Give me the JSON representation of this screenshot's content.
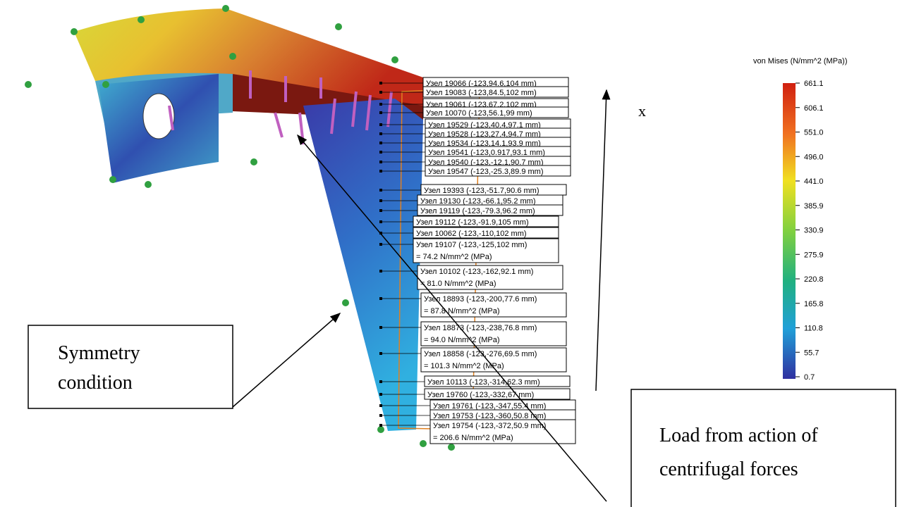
{
  "legend": {
    "title": "von Mises (N/mm^2 (MPa))",
    "labels": [
      "661.1",
      "606.1",
      "551.0",
      "496.0",
      "441.0",
      "385.9",
      "330.9",
      "275.9",
      "220.8",
      "165.8",
      "110.8",
      "55.7",
      "0.7"
    ]
  },
  "axis_label": "x",
  "callouts": {
    "symmetry": [
      "Symmetry",
      "condition"
    ],
    "load": [
      "Load from action of",
      "centrifugal forces"
    ]
  },
  "probes": [
    {
      "node": "Узел 19066 (-123,94.6,104 mm)"
    },
    {
      "node": "Узел 19083 (-123,84.5,102 mm)"
    },
    {
      "node": "Узел 19061 (-123,67.2,102 mm)"
    },
    {
      "node": "Узел 10070 (-123,56.1,99 mm)"
    },
    {
      "node": "Узел 19529 (-123,40.4,97.1 mm)"
    },
    {
      "node": "Узел 19528 (-123,27.4,94.7 mm)"
    },
    {
      "node": "Узел 19534 (-123,14.1,93.9 mm)"
    },
    {
      "node": "Узел 19541 (-123,0.917,93.1 mm)"
    },
    {
      "node": "Узел 19540 (-123,-12.1,90.7 mm)"
    },
    {
      "node": "Узел 19547 (-123,-25.3,89.9 mm)"
    },
    {
      "node": "Узел 19393 (-123,-51.7,90.6 mm)"
    },
    {
      "node": "Узел 19130 (-123,-66.1,95.2 mm)"
    },
    {
      "node": "Узел 19119 (-123,-79.3,96.2 mm)"
    },
    {
      "node": "Узел 19112 (-123,-91.9,105 mm)"
    },
    {
      "node": "Узел 10062 (-123,-110,102 mm)"
    },
    {
      "node": "Узел 19107 (-123,-125,102 mm)",
      "result": "= 74.2    N/mm^2 (MPa)"
    },
    {
      "node": "Узел 10102 (-123,-162,92.1 mm)",
      "result": "= 81.0    N/mm^2 (MPa)"
    },
    {
      "node": "Узел 18893 (-123,-200,77.6 mm)",
      "result": "= 87.8    N/mm^2 (MPa)"
    },
    {
      "node": "Узел 18873 (-123,-238,76.8 mm)",
      "result": "= 94.0    N/mm^2 (MPa)"
    },
    {
      "node": "Узел 18858 (-123,-276,69.5 mm)",
      "result": "= 101.3    N/mm^2 (MPa)"
    },
    {
      "node": "Узел 10113 (-123,-314,62.3 mm)"
    },
    {
      "node": "Узел 19760 (-123,-332,67 mm)"
    },
    {
      "node": "Узел 19761 (-123,-347,55.4 mm)"
    },
    {
      "node": "Узел 19753 (-123,-360,50.8 mm)"
    },
    {
      "node": "Узел 19754 (-123,-372,50.9 mm)",
      "result": "= 206.6    N/mm^2 (MPa)"
    }
  ]
}
